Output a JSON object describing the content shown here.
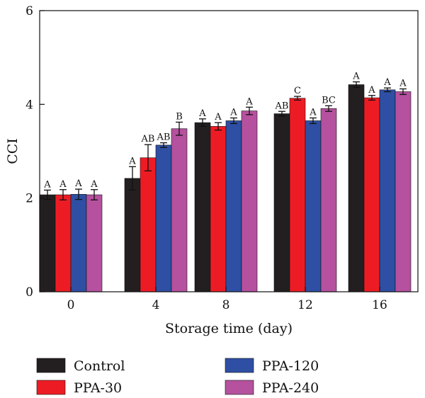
{
  "chart_data": {
    "type": "bar",
    "xlabel": "Storage time (day)",
    "ylabel": "CCI",
    "ylim": [
      0,
      6
    ],
    "yticks": [
      0,
      2,
      4,
      6
    ],
    "categories": [
      "0",
      "4",
      "8",
      "12",
      "16"
    ],
    "legend_position": "bottom",
    "series": [
      {
        "name": "Control",
        "color": "#231f20",
        "values": [
          2.07,
          2.42,
          3.61,
          3.8,
          4.42
        ],
        "errors": [
          0.1,
          0.25,
          0.08,
          0.05,
          0.06
        ],
        "significance": [
          "A",
          "A",
          "A",
          "AB",
          "A"
        ]
      },
      {
        "name": "PPA-30",
        "color": "#ed1c24",
        "values": [
          2.07,
          2.86,
          3.53,
          4.13,
          4.14
        ],
        "errors": [
          0.11,
          0.28,
          0.08,
          0.04,
          0.05
        ],
        "significance": [
          "A",
          "AB",
          "A",
          "C",
          "A"
        ]
      },
      {
        "name": "PPA-120",
        "color": "#2e4fa3",
        "values": [
          2.08,
          3.13,
          3.65,
          3.65,
          4.31
        ],
        "errors": [
          0.11,
          0.05,
          0.06,
          0.06,
          0.04
        ],
        "significance": [
          "A",
          "AB",
          "A",
          "A",
          "A"
        ]
      },
      {
        "name": "PPA-240",
        "color": "#b5519e",
        "values": [
          2.07,
          3.48,
          3.86,
          3.91,
          4.27
        ],
        "errors": [
          0.11,
          0.14,
          0.08,
          0.06,
          0.06
        ],
        "significance": [
          "A",
          "B",
          "A",
          "BC",
          "A"
        ]
      }
    ]
  }
}
